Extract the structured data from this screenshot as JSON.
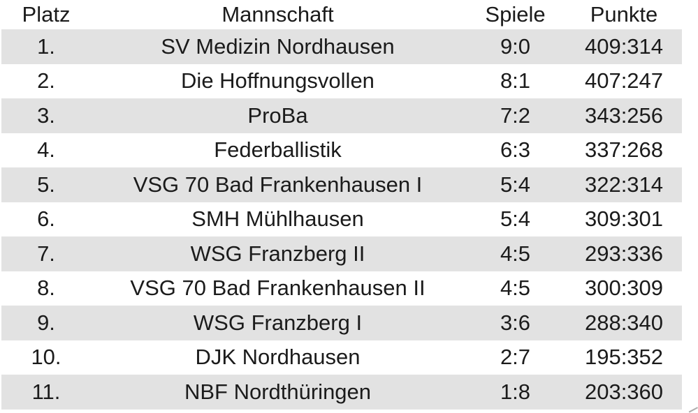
{
  "colors": {
    "stripe": "#e2e2e2",
    "text": "#1b1b1b",
    "background": "#ffffff"
  },
  "table": {
    "columns": [
      {
        "key": "platz",
        "label": "Platz"
      },
      {
        "key": "mannschaft",
        "label": "Mannschaft"
      },
      {
        "key": "spiele",
        "label": "Spiele"
      },
      {
        "key": "punkte",
        "label": "Punkte"
      }
    ],
    "rows": [
      {
        "platz": "1.",
        "mannschaft": "SV Medizin Nordhausen",
        "spiele": "9:0",
        "punkte": "409:314"
      },
      {
        "platz": "2.",
        "mannschaft": "Die Hoffnungsvollen",
        "spiele": "8:1",
        "punkte": "407:247"
      },
      {
        "platz": "3.",
        "mannschaft": "ProBa",
        "spiele": "7:2",
        "punkte": "343:256"
      },
      {
        "platz": "4.",
        "mannschaft": "Federballistik",
        "spiele": "6:3",
        "punkte": "337:268"
      },
      {
        "platz": "5.",
        "mannschaft": "VSG 70 Bad Frankenhausen I",
        "spiele": "5:4",
        "punkte": "322:314"
      },
      {
        "platz": "6.",
        "mannschaft": "SMH Mühlhausen",
        "spiele": "5:4",
        "punkte": "309:301"
      },
      {
        "platz": "7.",
        "mannschaft": "WSG Franzberg II",
        "spiele": "4:5",
        "punkte": "293:336"
      },
      {
        "platz": "8.",
        "mannschaft": "VSG 70 Bad Frankenhausen II",
        "spiele": "4:5",
        "punkte": "300:309"
      },
      {
        "platz": "9.",
        "mannschaft": "WSG Franzberg I",
        "spiele": "3:6",
        "punkte": "288:340"
      },
      {
        "platz": "10.",
        "mannschaft": "DJK Nordhausen",
        "spiele": "2:7",
        "punkte": "195:352"
      },
      {
        "platz": "11.",
        "mannschaft": "NBF Nordthüringen",
        "spiele": "1:8",
        "punkte": "203:360"
      }
    ]
  }
}
